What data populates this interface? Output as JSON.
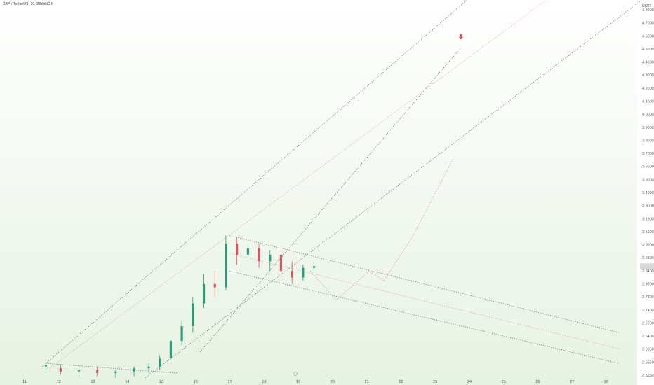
{
  "header": {
    "symbol_title": "XRP / TetherUS, 30, BINANCE",
    "currency": "USDT"
  },
  "colors": {
    "background_top": "#ffffff",
    "background_bottom": "#e6f2e3",
    "candle_up": "#2e9c7a",
    "candle_down": "#d6575a",
    "trend_dark": "#555555",
    "trend_red": "#e07a7a",
    "price_highlight": "#d8d8d8",
    "marker": "#d9534f"
  },
  "current_price_label": "",
  "chart_data": {
    "type": "candlestick",
    "title": "XRP / TetherUS, 30, BINANCE",
    "y_unit": "USDT",
    "x_tick_labels": [
      "11",
      "12",
      "13",
      "14",
      "15",
      "16",
      "17",
      "18",
      "19",
      "20",
      "21",
      "22",
      "23",
      "24",
      "25",
      "26",
      "27",
      "28"
    ],
    "y_tick_labels": [
      "4.8000",
      "4.7000",
      "4.6000",
      "4.5000",
      "4.4000",
      "4.3000",
      "4.2000",
      "4.1000",
      "4.0000",
      "3.9000",
      "3.8000",
      "3.7000",
      "3.6000",
      "3.5000",
      "3.4000",
      "3.3000",
      "3.1900",
      "3.1200",
      "3.0500",
      "2.9800",
      "2.9400",
      "2.8800",
      "2.7800",
      "2.7400",
      "2.6900",
      "2.6400",
      "2.6050",
      "2.5650",
      "2.5250"
    ],
    "xlim": [
      11,
      28
    ],
    "ylim": [
      2.52,
      4.81
    ],
    "grid": false,
    "price_candles": [
      {
        "day": 11.6,
        "o": 2.59,
        "h": 2.62,
        "l": 2.55,
        "c": 2.6
      },
      {
        "day": 12.0,
        "o": 2.58,
        "h": 2.6,
        "l": 2.54,
        "c": 2.56
      },
      {
        "day": 12.5,
        "o": 2.56,
        "h": 2.59,
        "l": 2.53,
        "c": 2.57
      },
      {
        "day": 13.0,
        "o": 2.57,
        "h": 2.59,
        "l": 2.53,
        "c": 2.55
      },
      {
        "day": 13.5,
        "o": 2.55,
        "h": 2.57,
        "l": 2.52,
        "c": 2.56
      },
      {
        "day": 14.0,
        "o": 2.56,
        "h": 2.59,
        "l": 2.53,
        "c": 2.58
      },
      {
        "day": 14.4,
        "o": 2.58,
        "h": 2.61,
        "l": 2.55,
        "c": 2.59
      },
      {
        "day": 14.7,
        "o": 2.59,
        "h": 2.66,
        "l": 2.57,
        "c": 2.64
      },
      {
        "day": 15.0,
        "o": 2.64,
        "h": 2.78,
        "l": 2.63,
        "c": 2.75
      },
      {
        "day": 15.3,
        "o": 2.75,
        "h": 2.88,
        "l": 2.72,
        "c": 2.84
      },
      {
        "day": 15.6,
        "o": 2.84,
        "h": 3.02,
        "l": 2.8,
        "c": 2.98
      },
      {
        "day": 15.9,
        "o": 2.98,
        "h": 3.16,
        "l": 2.95,
        "c": 3.1
      },
      {
        "day": 16.2,
        "o": 3.1,
        "h": 3.18,
        "l": 3.02,
        "c": 3.08
      },
      {
        "day": 16.5,
        "o": 3.08,
        "h": 3.4,
        "l": 3.06,
        "c": 3.35
      },
      {
        "day": 16.8,
        "o": 3.35,
        "h": 3.39,
        "l": 3.22,
        "c": 3.28
      },
      {
        "day": 17.1,
        "o": 3.28,
        "h": 3.35,
        "l": 3.24,
        "c": 3.32
      },
      {
        "day": 17.4,
        "o": 3.32,
        "h": 3.35,
        "l": 3.2,
        "c": 3.24
      },
      {
        "day": 17.7,
        "o": 3.24,
        "h": 3.31,
        "l": 3.18,
        "c": 3.28
      },
      {
        "day": 18.0,
        "o": 3.28,
        "h": 3.3,
        "l": 3.14,
        "c": 3.18
      },
      {
        "day": 18.3,
        "o": 3.18,
        "h": 3.24,
        "l": 3.1,
        "c": 3.14
      },
      {
        "day": 18.6,
        "o": 3.14,
        "h": 3.22,
        "l": 3.12,
        "c": 3.2
      },
      {
        "day": 18.9,
        "o": 3.2,
        "h": 3.23,
        "l": 3.17,
        "c": 3.21
      }
    ],
    "trend_lines": [
      {
        "style": "dark",
        "from": [
          11.5,
          2.59
        ],
        "to": [
          23.3,
          4.9
        ]
      },
      {
        "style": "dark",
        "from": [
          14.3,
          2.52
        ],
        "to": [
          27.8,
          4.85
        ]
      },
      {
        "style": "dark",
        "from": [
          15.8,
          2.68
        ],
        "to": [
          22.9,
          4.56
        ]
      },
      {
        "style": "dark",
        "from": [
          11.6,
          2.61
        ],
        "to": [
          15.2,
          2.55
        ]
      },
      {
        "style": "dark",
        "from": [
          16.6,
          3.4
        ],
        "to": [
          27.2,
          2.8
        ]
      },
      {
        "style": "dark",
        "from": [
          16.6,
          3.18
        ],
        "to": [
          27.2,
          2.61
        ]
      },
      {
        "style": "red",
        "from": [
          11.7,
          2.58
        ],
        "to": [
          25.2,
          4.85
        ]
      },
      {
        "style": "red",
        "from": [
          16.6,
          3.29
        ],
        "to": [
          27.2,
          2.7
        ]
      }
    ],
    "projection_path": [
      [
        18.8,
        3.18
      ],
      [
        19.2,
        3.08
      ],
      [
        19.5,
        3.0
      ],
      [
        20.4,
        3.18
      ],
      [
        20.8,
        3.12
      ],
      [
        21.6,
        3.4
      ],
      [
        22.7,
        3.88
      ]
    ],
    "target_marker": {
      "day": 22.9,
      "price": 4.6
    }
  }
}
